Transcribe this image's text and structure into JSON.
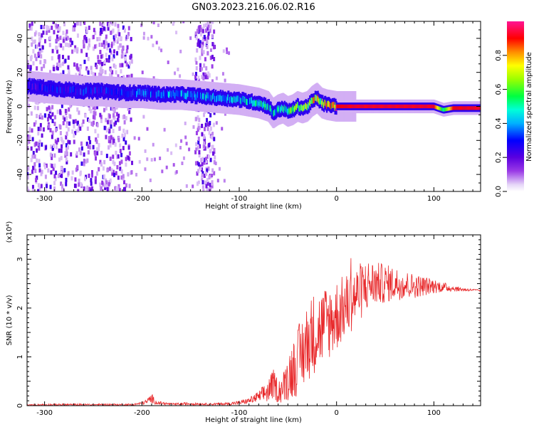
{
  "title": "GN03.2023.216.06.02.R16",
  "chart_data": [
    {
      "type": "heatmap",
      "name": "spectrogram",
      "xlabel": "Height of straight line (km)",
      "ylabel": "Frequency (Hz)",
      "xlim": [
        -318,
        148
      ],
      "ylim": [
        -50,
        50
      ],
      "xticks": [
        -300,
        -200,
        -100,
        0,
        100
      ],
      "xtick_labels": [
        "-300",
        "-200",
        "-100",
        "0",
        "100"
      ],
      "yticks": [
        -40,
        -20,
        0,
        20,
        40
      ],
      "ytick_labels": [
        "-40",
        "-20",
        "0",
        "20",
        "40"
      ],
      "colorbar": {
        "label": "Normalized spectral amplitude",
        "range": [
          0.0,
          1.0
        ],
        "ticks": [
          0.0,
          0.2,
          0.4,
          0.6,
          0.8
        ],
        "tick_labels": [
          "0.0",
          "0.2",
          "0.4",
          "0.6",
          "0.8"
        ],
        "colormap": "rainbow (purple-blue-cyan-green-yellow-red-magenta)"
      },
      "ridge": {
        "description": "dominant frequency track vs height",
        "x": [
          -318,
          -300,
          -280,
          -260,
          -240,
          -220,
          -200,
          -180,
          -160,
          -140,
          -120,
          -100,
          -80,
          -70,
          -65,
          -60,
          -55,
          -50,
          -45,
          -40,
          -35,
          -30,
          -25,
          -20,
          -15,
          -10,
          0,
          20,
          40,
          60,
          80,
          100,
          110,
          120,
          148
        ],
        "y": [
          12,
          11,
          10,
          9,
          9,
          8,
          8,
          7,
          7,
          6,
          5,
          4,
          2,
          0,
          -4,
          -2,
          -1,
          -3,
          -2,
          0,
          -1,
          0,
          3,
          5,
          2,
          1,
          0,
          0,
          0,
          0,
          0,
          0,
          -2,
          -1,
          -1
        ],
        "amplitude": [
          0.25,
          0.3,
          0.3,
          0.32,
          0.3,
          0.3,
          0.35,
          0.4,
          0.4,
          0.42,
          0.45,
          0.45,
          0.5,
          0.5,
          0.45,
          0.5,
          0.55,
          0.55,
          0.6,
          0.65,
          0.6,
          0.7,
          0.75,
          0.7,
          0.8,
          0.85,
          0.9,
          0.92,
          0.92,
          0.92,
          0.92,
          0.92,
          0.5,
          0.9,
          0.92
        ]
      },
      "noise_bands_x": [
        [
          -318,
          -210
        ],
        [
          -145,
          -125
        ]
      ]
    },
    {
      "type": "line",
      "name": "snr",
      "xlabel": "Height of straight line (km)",
      "ylabel": "SNR (10 * v/v)",
      "y_multiplier": "(x10⁴)",
      "xlim": [
        -318,
        148
      ],
      "ylim": [
        0,
        3.5
      ],
      "xticks": [
        -300,
        -200,
        -100,
        0,
        100
      ],
      "xtick_labels": [
        "-300",
        "-200",
        "-100",
        "0",
        "100"
      ],
      "yticks": [
        0,
        1,
        2,
        3
      ],
      "ytick_labels": [
        "0",
        "1",
        "2",
        "3"
      ],
      "color": "#e8282a",
      "series": [
        {
          "x": [
            -318,
            -300,
            -250,
            -210,
            -200,
            -195,
            -190,
            -185,
            -170,
            -150,
            -130,
            -110,
            -100,
            -90,
            -80,
            -70,
            -65,
            -60,
            -55,
            -50,
            -45,
            -40,
            -35,
            -30,
            -25,
            -20,
            -15,
            -10,
            -5,
            0,
            5,
            10,
            15,
            20,
            25,
            30,
            35,
            40,
            50,
            60,
            70,
            80,
            90,
            100,
            110,
            120,
            130,
            140,
            148
          ],
          "y": [
            0.01,
            0.02,
            0.02,
            0.02,
            0.05,
            0.08,
            0.15,
            0.06,
            0.03,
            0.04,
            0.03,
            0.04,
            0.06,
            0.1,
            0.18,
            0.3,
            0.45,
            0.3,
            0.35,
            0.6,
            0.75,
            0.9,
            1.1,
            1.3,
            1.45,
            1.55,
            1.6,
            1.7,
            1.75,
            1.85,
            1.95,
            2.05,
            2.15,
            2.25,
            2.35,
            2.45,
            2.5,
            2.5,
            2.5,
            2.5,
            2.48,
            2.45,
            2.45,
            2.45,
            2.43,
            2.4,
            2.38,
            2.37,
            2.36
          ],
          "spread": [
            0.01,
            0.02,
            0.02,
            0.02,
            0.03,
            0.05,
            0.1,
            0.04,
            0.02,
            0.03,
            0.02,
            0.03,
            0.04,
            0.06,
            0.12,
            0.25,
            0.3,
            0.25,
            0.3,
            0.5,
            0.6,
            0.7,
            0.8,
            0.8,
            0.85,
            0.85,
            0.8,
            0.8,
            0.75,
            0.75,
            0.7,
            0.65,
            0.65,
            0.6,
            0.6,
            0.55,
            0.5,
            0.45,
            0.4,
            0.35,
            0.3,
            0.25,
            0.2,
            0.15,
            0.1,
            0.06,
            0.04,
            0.02,
            0.02
          ]
        }
      ]
    }
  ]
}
